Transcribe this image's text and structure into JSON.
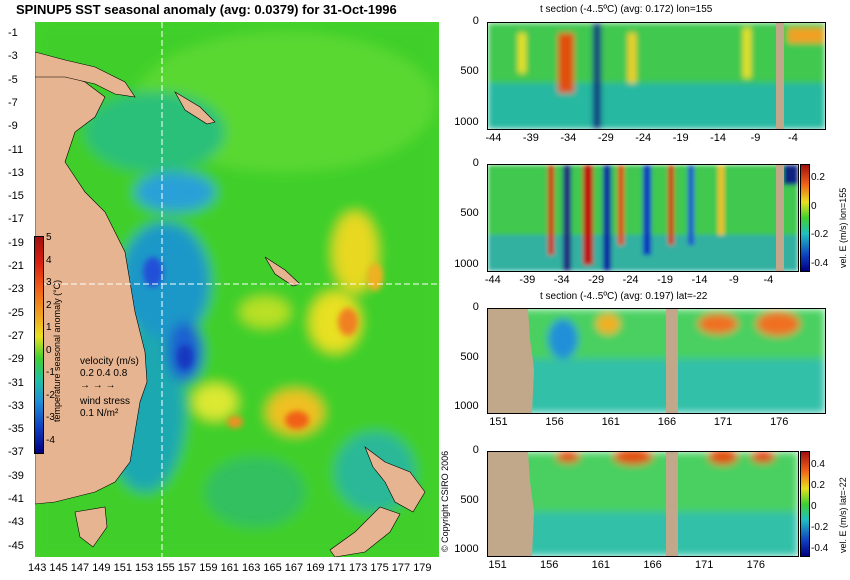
{
  "chart_data": [
    {
      "type": "heatmap",
      "title": "SPINUP5 SST seasonal anomaly (avg: 0.0379) for 31-Oct-1996",
      "x_ticks": [
        "143",
        "145",
        "147",
        "149",
        "151",
        "153",
        "155",
        "157",
        "159",
        "161",
        "163",
        "165",
        "167",
        "169",
        "171",
        "173",
        "175",
        "177",
        "179"
      ],
      "y_ticks": [
        "-1",
        "-3",
        "-5",
        "-7",
        "-9",
        "-11",
        "-13",
        "-15",
        "-17",
        "-19",
        "-21",
        "-23",
        "-25",
        "-27",
        "-29",
        "-31",
        "-33",
        "-35",
        "-37",
        "-39",
        "-41",
        "-43",
        "-45"
      ],
      "xlim": [
        143,
        180
      ],
      "ylim": [
        -45,
        0
      ],
      "colorbar": {
        "label": "temperature seasonal anomaly (°C)",
        "ticks": [
          "5",
          "4",
          "3",
          "2",
          "1",
          "0",
          "-1",
          "-2",
          "-3",
          "-4"
        ],
        "range": [
          -4,
          5
        ]
      },
      "legend": {
        "velocity_label": "velocity (m/s)",
        "velocity_values": "0.2 0.4 0.8",
        "wind_label": "wind stress",
        "wind_value": "0.1 N/m²"
      },
      "crosshair": {
        "lon": 155,
        "lat": -22
      }
    },
    {
      "type": "heatmap",
      "title": "t section (-4..5ºC) (avg: 0.172) lon=155",
      "x_ticks": [
        "-44",
        "-39",
        "-34",
        "-29",
        "-24",
        "-19",
        "-14",
        "-9",
        "-4"
      ],
      "y_ticks": [
        "0",
        "500",
        "1000"
      ],
      "xlim": [
        -45,
        0
      ],
      "ylim": [
        1050,
        0
      ]
    },
    {
      "type": "heatmap",
      "x_ticks": [
        "-44",
        "-39",
        "-34",
        "-29",
        "-24",
        "-19",
        "-14",
        "-9",
        "-4"
      ],
      "y_ticks": [
        "0",
        "500",
        "1000"
      ],
      "xlim": [
        -45,
        0
      ],
      "ylim": [
        1050,
        0
      ],
      "colorbar": {
        "label": "vel. E (m/s) lon=155",
        "ticks": [
          "0.2",
          "0",
          "-0.2",
          "-0.4"
        ],
        "range": [
          -0.45,
          0.45
        ]
      }
    },
    {
      "type": "heatmap",
      "title": "t section (-4..5ºC) (avg: 0.197) lat=-22",
      "x_ticks": [
        "151",
        "156",
        "161",
        "166",
        "171",
        "176"
      ],
      "y_ticks": [
        "0",
        "500",
        "1000"
      ],
      "xlim": [
        150,
        180
      ],
      "ylim": [
        1050,
        0
      ]
    },
    {
      "type": "heatmap",
      "x_ticks": [
        "151",
        "156",
        "161",
        "166",
        "171",
        "176"
      ],
      "y_ticks": [
        "0",
        "500",
        "1000"
      ],
      "xlim": [
        150,
        180
      ],
      "ylim": [
        1050,
        0
      ],
      "colorbar": {
        "label": "vel. E (m/s) lat=-22",
        "ticks": [
          "0.4",
          "0.2",
          "0",
          "-0.2",
          "-0.4"
        ],
        "range": [
          -0.45,
          0.45
        ]
      }
    }
  ],
  "copyright": "© Copyright CSIRO 2006",
  "colors": {
    "land": "#e6b490",
    "section_land": "#c2a88a",
    "ocean_base": "#44d428",
    "crosshair": "#ffffff",
    "vectors": "#c040c0"
  }
}
